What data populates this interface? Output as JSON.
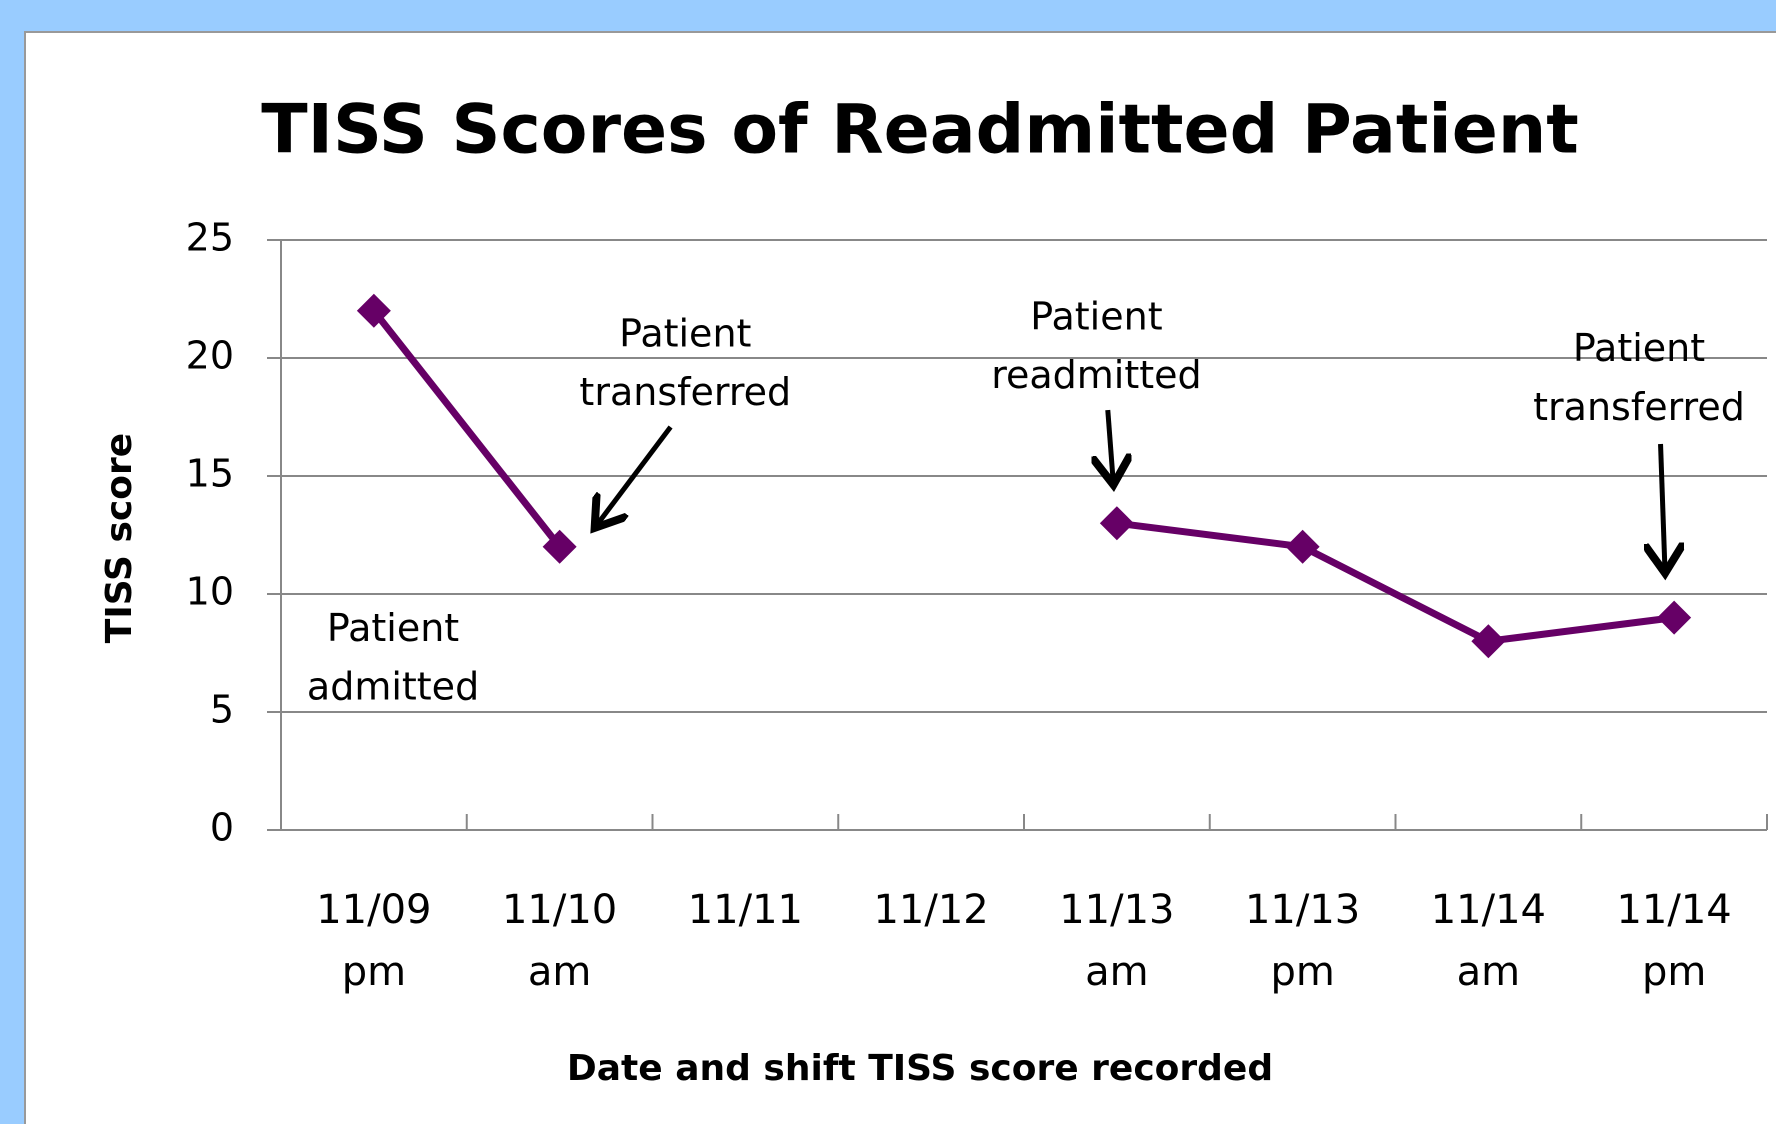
{
  "chart_data": {
    "type": "line",
    "title": "TISS Scores of Readmitted Patient",
    "x_label": "Date and shift TISS score recorded",
    "y_label": "TISS score",
    "categories": [
      "11/09 pm",
      "11/10 am",
      "11/11",
      "11/12",
      "11/13 am",
      "11/13 pm",
      "11/14 am",
      "11/14 pm"
    ],
    "series": [
      {
        "name": "TISS score",
        "color": "#660066",
        "values": [
          22,
          12,
          null,
          null,
          13,
          12,
          8,
          9
        ]
      }
    ],
    "ylim": [
      0,
      25
    ],
    "yticks": [
      0,
      5,
      10,
      15,
      20,
      25
    ],
    "grid": true,
    "annotations": [
      "Patient admitted",
      "Patient transferred",
      "Patient readmitted",
      "Patient transferred"
    ]
  }
}
